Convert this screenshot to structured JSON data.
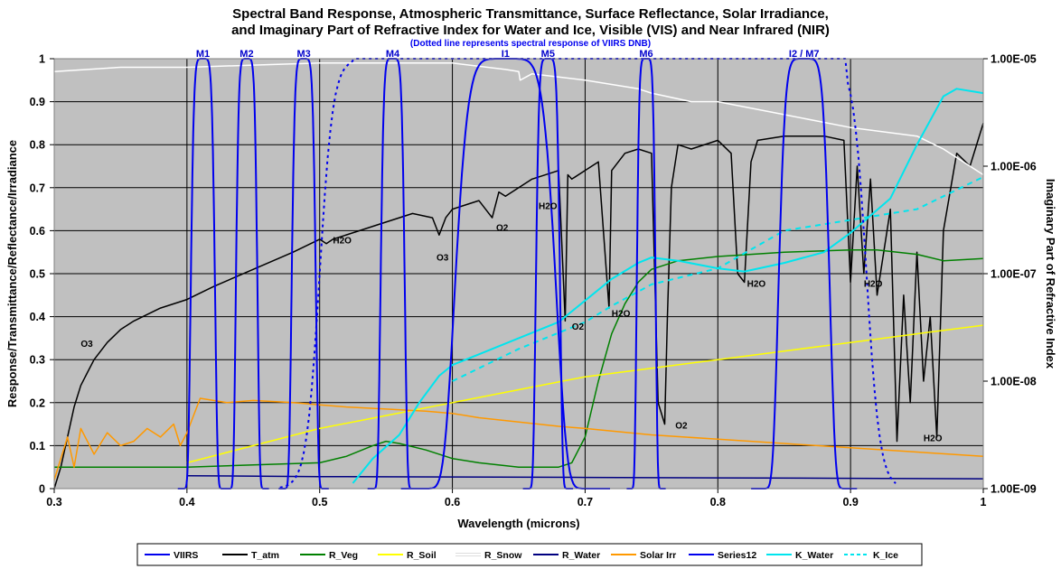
{
  "chart_data": {
    "type": "line",
    "title_line1": "Spectral Band Response, Atmospheric Transmittance, Surface Reflectance, Solar Irradiance,",
    "title_line2": "and Imaginary Part of Refractive Index for Water and Ice, Visible (VIS) and Near Infrared (NIR)",
    "subtitle": "(Dotted line represents spectral response of VIIRS DNB)",
    "xlabel": "Wavelength (microns)",
    "ylabel": "Response/Transmittance/Reflectance/Irradiance",
    "y2label": "Imaginary Part of Refractive Index",
    "xlim": [
      0.3,
      1.0
    ],
    "ylim": [
      0,
      1
    ],
    "y2_log_range": [
      -9,
      -5
    ],
    "x_ticks": [
      "0.3",
      "0.4",
      "0.5",
      "0.6",
      "0.7",
      "0.8",
      "0.9",
      "1"
    ],
    "x_tick_values": [
      0.3,
      0.4,
      0.5,
      0.6,
      0.7,
      0.8,
      0.9,
      1.0
    ],
    "y_ticks": [
      "0",
      "0.1",
      "0.2",
      "0.3",
      "0.4",
      "0.5",
      "0.6",
      "0.7",
      "0.8",
      "0.9",
      "1"
    ],
    "y_tick_values": [
      0,
      0.1,
      0.2,
      0.3,
      0.4,
      0.5,
      0.6,
      0.7,
      0.8,
      0.9,
      1.0
    ],
    "y2_ticks": [
      "1.00E-09",
      "1.00E-08",
      "1.00E-07",
      "1.00E-06",
      "1.00E-05"
    ],
    "y2_tick_values": [
      -9,
      -8,
      -7,
      -6,
      -5
    ],
    "grid": true,
    "colors": {
      "plot_bg": "#c0c0c0",
      "VIIRS": "#0000ee",
      "T_atm": "#000000",
      "R_Veg": "#008000",
      "R_Soil": "#ffff00",
      "R_Snow": "#ffffff",
      "R_Water": "#000080",
      "Solar_Irr": "#ff9900",
      "Series12": "#0000ee",
      "K_Water": "#00e5ee",
      "K_Ice": "#00e5ee"
    },
    "bands": [
      {
        "name": "M1",
        "center": 0.412,
        "fwhm": 0.018
      },
      {
        "name": "M2",
        "center": 0.445,
        "fwhm": 0.016
      },
      {
        "name": "M3",
        "center": 0.488,
        "fwhm": 0.018
      },
      {
        "name": "M4",
        "center": 0.555,
        "fwhm": 0.018
      },
      {
        "name": "I1",
        "center": 0.64,
        "fwhm": 0.075
      },
      {
        "name": "M5",
        "center": 0.672,
        "fwhm": 0.018
      },
      {
        "name": "M6",
        "center": 0.746,
        "fwhm": 0.014
      },
      {
        "name": "I2 / M7",
        "center": 0.865,
        "fwhm": 0.038
      }
    ],
    "band_label_x": [
      0.412,
      0.445,
      0.488,
      0.555,
      0.64,
      0.672,
      0.746,
      0.865
    ],
    "dnb": {
      "start": 0.5,
      "end": 0.9,
      "edge_width": 0.025
    },
    "series": [
      {
        "name": "T_atm",
        "x": [
          0.3,
          0.305,
          0.31,
          0.315,
          0.32,
          0.325,
          0.33,
          0.34,
          0.35,
          0.36,
          0.38,
          0.4,
          0.42,
          0.45,
          0.48,
          0.5,
          0.505,
          0.51,
          0.53,
          0.55,
          0.57,
          0.585,
          0.59,
          0.595,
          0.6,
          0.62,
          0.63,
          0.635,
          0.64,
          0.66,
          0.68,
          0.685,
          0.687,
          0.69,
          0.7,
          0.71,
          0.718,
          0.72,
          0.73,
          0.74,
          0.75,
          0.755,
          0.76,
          0.762,
          0.765,
          0.77,
          0.78,
          0.8,
          0.81,
          0.815,
          0.82,
          0.825,
          0.83,
          0.85,
          0.88,
          0.895,
          0.9,
          0.905,
          0.91,
          0.915,
          0.92,
          0.93,
          0.935,
          0.94,
          0.945,
          0.95,
          0.955,
          0.96,
          0.965,
          0.97,
          0.98,
          0.99,
          1.0
        ],
        "y": [
          0.0,
          0.05,
          0.12,
          0.19,
          0.24,
          0.27,
          0.3,
          0.34,
          0.37,
          0.39,
          0.42,
          0.44,
          0.47,
          0.51,
          0.55,
          0.58,
          0.57,
          0.58,
          0.6,
          0.62,
          0.64,
          0.63,
          0.59,
          0.63,
          0.65,
          0.67,
          0.63,
          0.69,
          0.68,
          0.72,
          0.74,
          0.39,
          0.73,
          0.72,
          0.74,
          0.76,
          0.42,
          0.74,
          0.78,
          0.79,
          0.78,
          0.2,
          0.15,
          0.4,
          0.7,
          0.8,
          0.79,
          0.81,
          0.78,
          0.5,
          0.48,
          0.76,
          0.81,
          0.82,
          0.82,
          0.81,
          0.48,
          0.75,
          0.5,
          0.72,
          0.45,
          0.65,
          0.11,
          0.45,
          0.2,
          0.55,
          0.25,
          0.4,
          0.12,
          0.6,
          0.78,
          0.75,
          0.85
        ]
      },
      {
        "name": "R_Veg",
        "x": [
          0.3,
          0.35,
          0.4,
          0.45,
          0.5,
          0.52,
          0.54,
          0.55,
          0.56,
          0.58,
          0.6,
          0.62,
          0.65,
          0.68,
          0.69,
          0.7,
          0.71,
          0.72,
          0.73,
          0.74,
          0.75,
          0.77,
          0.8,
          0.85,
          0.9,
          0.92,
          0.95,
          0.97,
          1.0
        ],
        "y": [
          0.05,
          0.05,
          0.05,
          0.055,
          0.06,
          0.075,
          0.1,
          0.11,
          0.105,
          0.09,
          0.07,
          0.06,
          0.05,
          0.05,
          0.06,
          0.12,
          0.25,
          0.36,
          0.43,
          0.48,
          0.51,
          0.53,
          0.54,
          0.55,
          0.555,
          0.555,
          0.545,
          0.53,
          0.535
        ]
      },
      {
        "name": "R_Soil",
        "x": [
          0.4,
          0.45,
          0.5,
          0.55,
          0.6,
          0.65,
          0.7,
          0.75,
          0.8,
          0.85,
          0.9,
          0.95,
          1.0
        ],
        "y": [
          0.06,
          0.1,
          0.14,
          0.17,
          0.2,
          0.23,
          0.26,
          0.28,
          0.3,
          0.32,
          0.34,
          0.36,
          0.38
        ]
      },
      {
        "name": "R_Snow",
        "x": [
          0.3,
          0.35,
          0.4,
          0.45,
          0.5,
          0.55,
          0.6,
          0.64,
          0.65,
          0.651,
          0.66,
          0.7,
          0.74,
          0.75,
          0.78,
          0.8,
          0.85,
          0.9,
          0.95,
          0.97,
          1.0
        ],
        "y": [
          0.97,
          0.98,
          0.98,
          0.985,
          0.99,
          0.99,
          0.99,
          0.975,
          0.97,
          0.95,
          0.965,
          0.95,
          0.93,
          0.92,
          0.9,
          0.9,
          0.87,
          0.84,
          0.82,
          0.79,
          0.73
        ]
      },
      {
        "name": "R_Water",
        "x": [
          0.4,
          0.5,
          0.6,
          0.7,
          0.8,
          0.9,
          1.0
        ],
        "y": [
          0.03,
          0.028,
          0.027,
          0.026,
          0.025,
          0.024,
          0.023
        ]
      },
      {
        "name": "Solar Irr",
        "x": [
          0.3,
          0.305,
          0.31,
          0.315,
          0.32,
          0.33,
          0.34,
          0.35,
          0.36,
          0.37,
          0.38,
          0.39,
          0.395,
          0.4,
          0.41,
          0.43,
          0.45,
          0.48,
          0.5,
          0.52,
          0.55,
          0.58,
          0.6,
          0.62,
          0.65,
          0.68,
          0.7,
          0.75,
          0.8,
          0.85,
          0.9,
          0.95,
          1.0
        ],
        "y": [
          0.02,
          0.07,
          0.12,
          0.05,
          0.14,
          0.08,
          0.13,
          0.1,
          0.11,
          0.14,
          0.12,
          0.15,
          0.1,
          0.13,
          0.21,
          0.2,
          0.205,
          0.2,
          0.195,
          0.19,
          0.185,
          0.18,
          0.175,
          0.165,
          0.155,
          0.145,
          0.14,
          0.125,
          0.115,
          0.105,
          0.095,
          0.085,
          0.075
        ]
      },
      {
        "name": "K_Water",
        "log10_x": [
          0.525,
          0.54,
          0.56,
          0.575,
          0.59,
          0.6,
          0.62,
          0.65,
          0.68,
          0.7,
          0.72,
          0.74,
          0.75,
          0.77,
          0.8,
          0.82,
          0.85,
          0.88,
          0.9,
          0.93,
          0.95,
          0.97,
          0.98,
          1.0
        ],
        "log10_y": [
          -8.95,
          -8.72,
          -8.5,
          -8.2,
          -7.95,
          -7.85,
          -7.75,
          -7.6,
          -7.45,
          -7.25,
          -7.05,
          -6.9,
          -6.85,
          -6.88,
          -6.95,
          -6.98,
          -6.9,
          -6.8,
          -6.62,
          -6.3,
          -5.8,
          -5.35,
          -5.28,
          -5.32
        ]
      },
      {
        "name": "K_Ice",
        "log10_x": [
          0.6,
          0.65,
          0.7,
          0.72,
          0.75,
          0.8,
          0.85,
          0.9,
          0.95,
          1.0
        ],
        "log10_y": [
          -8.0,
          -7.7,
          -7.45,
          -7.3,
          -7.1,
          -6.95,
          -6.6,
          -6.5,
          -6.4,
          -6.1
        ]
      }
    ],
    "annotations": [
      {
        "text": "O3",
        "x": 0.32,
        "y": 0.33
      },
      {
        "text": "H2O",
        "x": 0.51,
        "y": 0.57
      },
      {
        "text": "O3",
        "x": 0.588,
        "y": 0.53
      },
      {
        "text": "O2",
        "x": 0.633,
        "y": 0.6
      },
      {
        "text": "H2O",
        "x": 0.665,
        "y": 0.65
      },
      {
        "text": "O2",
        "x": 0.69,
        "y": 0.37
      },
      {
        "text": "H2O",
        "x": 0.72,
        "y": 0.4
      },
      {
        "text": "O2",
        "x": 0.768,
        "y": 0.14
      },
      {
        "text": "H2O",
        "x": 0.822,
        "y": 0.47
      },
      {
        "text": "H2O",
        "x": 0.91,
        "y": 0.47
      },
      {
        "text": "H2O",
        "x": 0.955,
        "y": 0.11
      }
    ],
    "legend": {
      "placement": "bottom",
      "entries": [
        {
          "name": "VIIRS",
          "color": "#0000ee",
          "dashed": false
        },
        {
          "name": "T_atm",
          "color": "#000000",
          "dashed": false
        },
        {
          "name": "R_Veg",
          "color": "#008000",
          "dashed": false
        },
        {
          "name": "R_Soil",
          "color": "#ffff00",
          "dashed": false
        },
        {
          "name": "R_Snow",
          "color": "#ffffff",
          "dashed": false
        },
        {
          "name": "R_Water",
          "color": "#000080",
          "dashed": false
        },
        {
          "name": "Solar Irr",
          "color": "#ff9900",
          "dashed": false
        },
        {
          "name": "Series12",
          "color": "#0000ee",
          "dashed": false
        },
        {
          "name": "K_Water",
          "color": "#00e5ee",
          "dashed": false
        },
        {
          "name": "K_Ice",
          "color": "#00e5ee",
          "dashed": true
        }
      ]
    }
  }
}
